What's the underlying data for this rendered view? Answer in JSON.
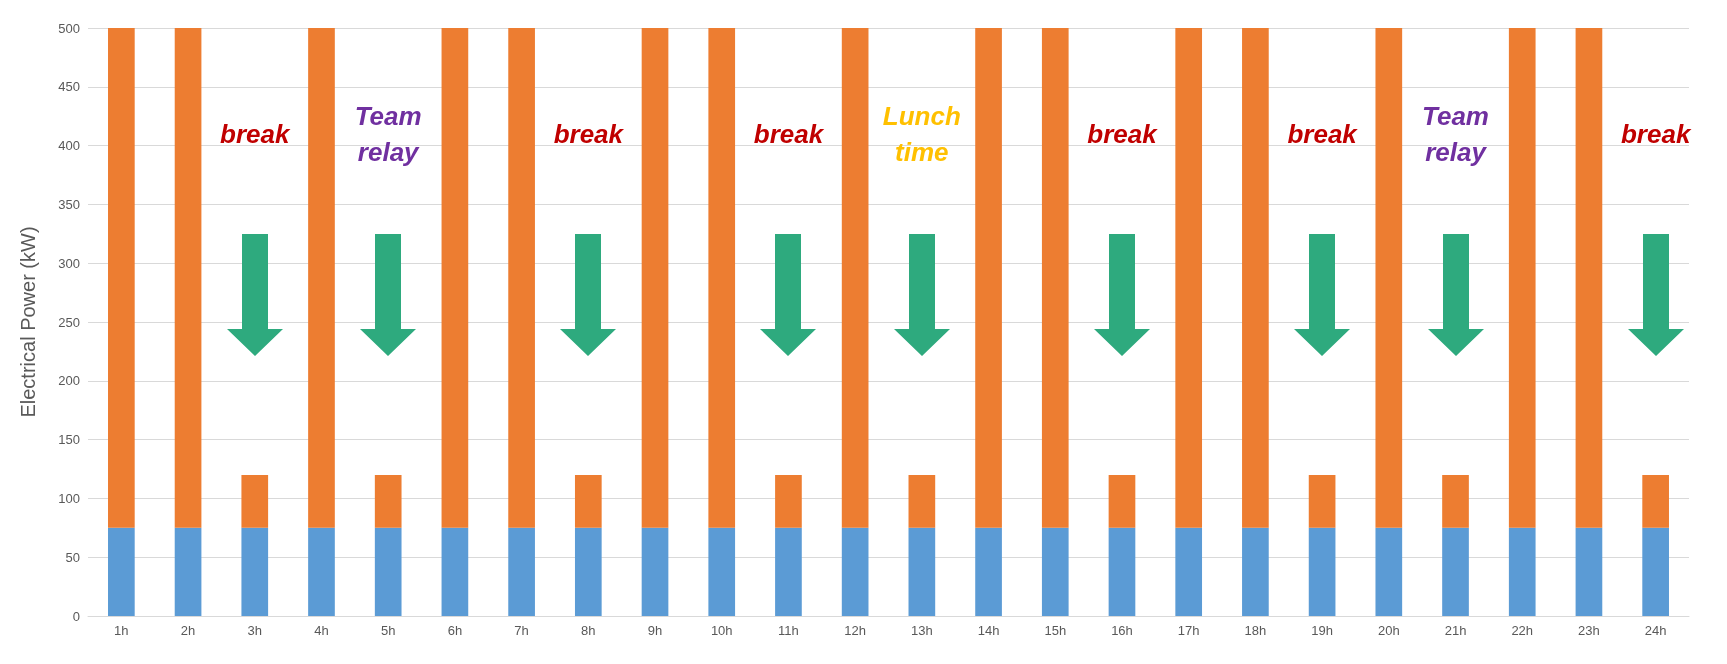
{
  "chart_data": {
    "type": "bar",
    "stacked": true,
    "ylabel": "Electrical Power (kW)",
    "categories": [
      "1h",
      "2h",
      "3h",
      "4h",
      "5h",
      "6h",
      "7h",
      "8h",
      "9h",
      "10h",
      "11h",
      "12h",
      "13h",
      "14h",
      "15h",
      "16h",
      "17h",
      "18h",
      "19h",
      "20h",
      "21h",
      "22h",
      "23h",
      "24h"
    ],
    "series": [
      {
        "color": "#5b9bd5",
        "values": [
          75,
          75,
          75,
          75,
          75,
          75,
          75,
          75,
          75,
          75,
          75,
          75,
          75,
          75,
          75,
          75,
          75,
          75,
          75,
          75,
          75,
          75,
          75,
          75
        ]
      },
      {
        "color": "#ed7d31",
        "values": [
          425,
          425,
          45,
          425,
          45,
          425,
          425,
          45,
          425,
          425,
          45,
          425,
          45,
          425,
          425,
          45,
          425,
          425,
          45,
          425,
          45,
          425,
          425,
          45
        ]
      }
    ],
    "ylim": [
      0,
      500
    ],
    "yticks": [
      0,
      50,
      100,
      150,
      200,
      250,
      300,
      350,
      400,
      450,
      500
    ],
    "grid": "y",
    "annotations": [
      "break",
      "Team\nrelay",
      "break",
      "break",
      "Lunch\ntime",
      "break",
      "break",
      "Team\nrelay",
      "break"
    ]
  }
}
